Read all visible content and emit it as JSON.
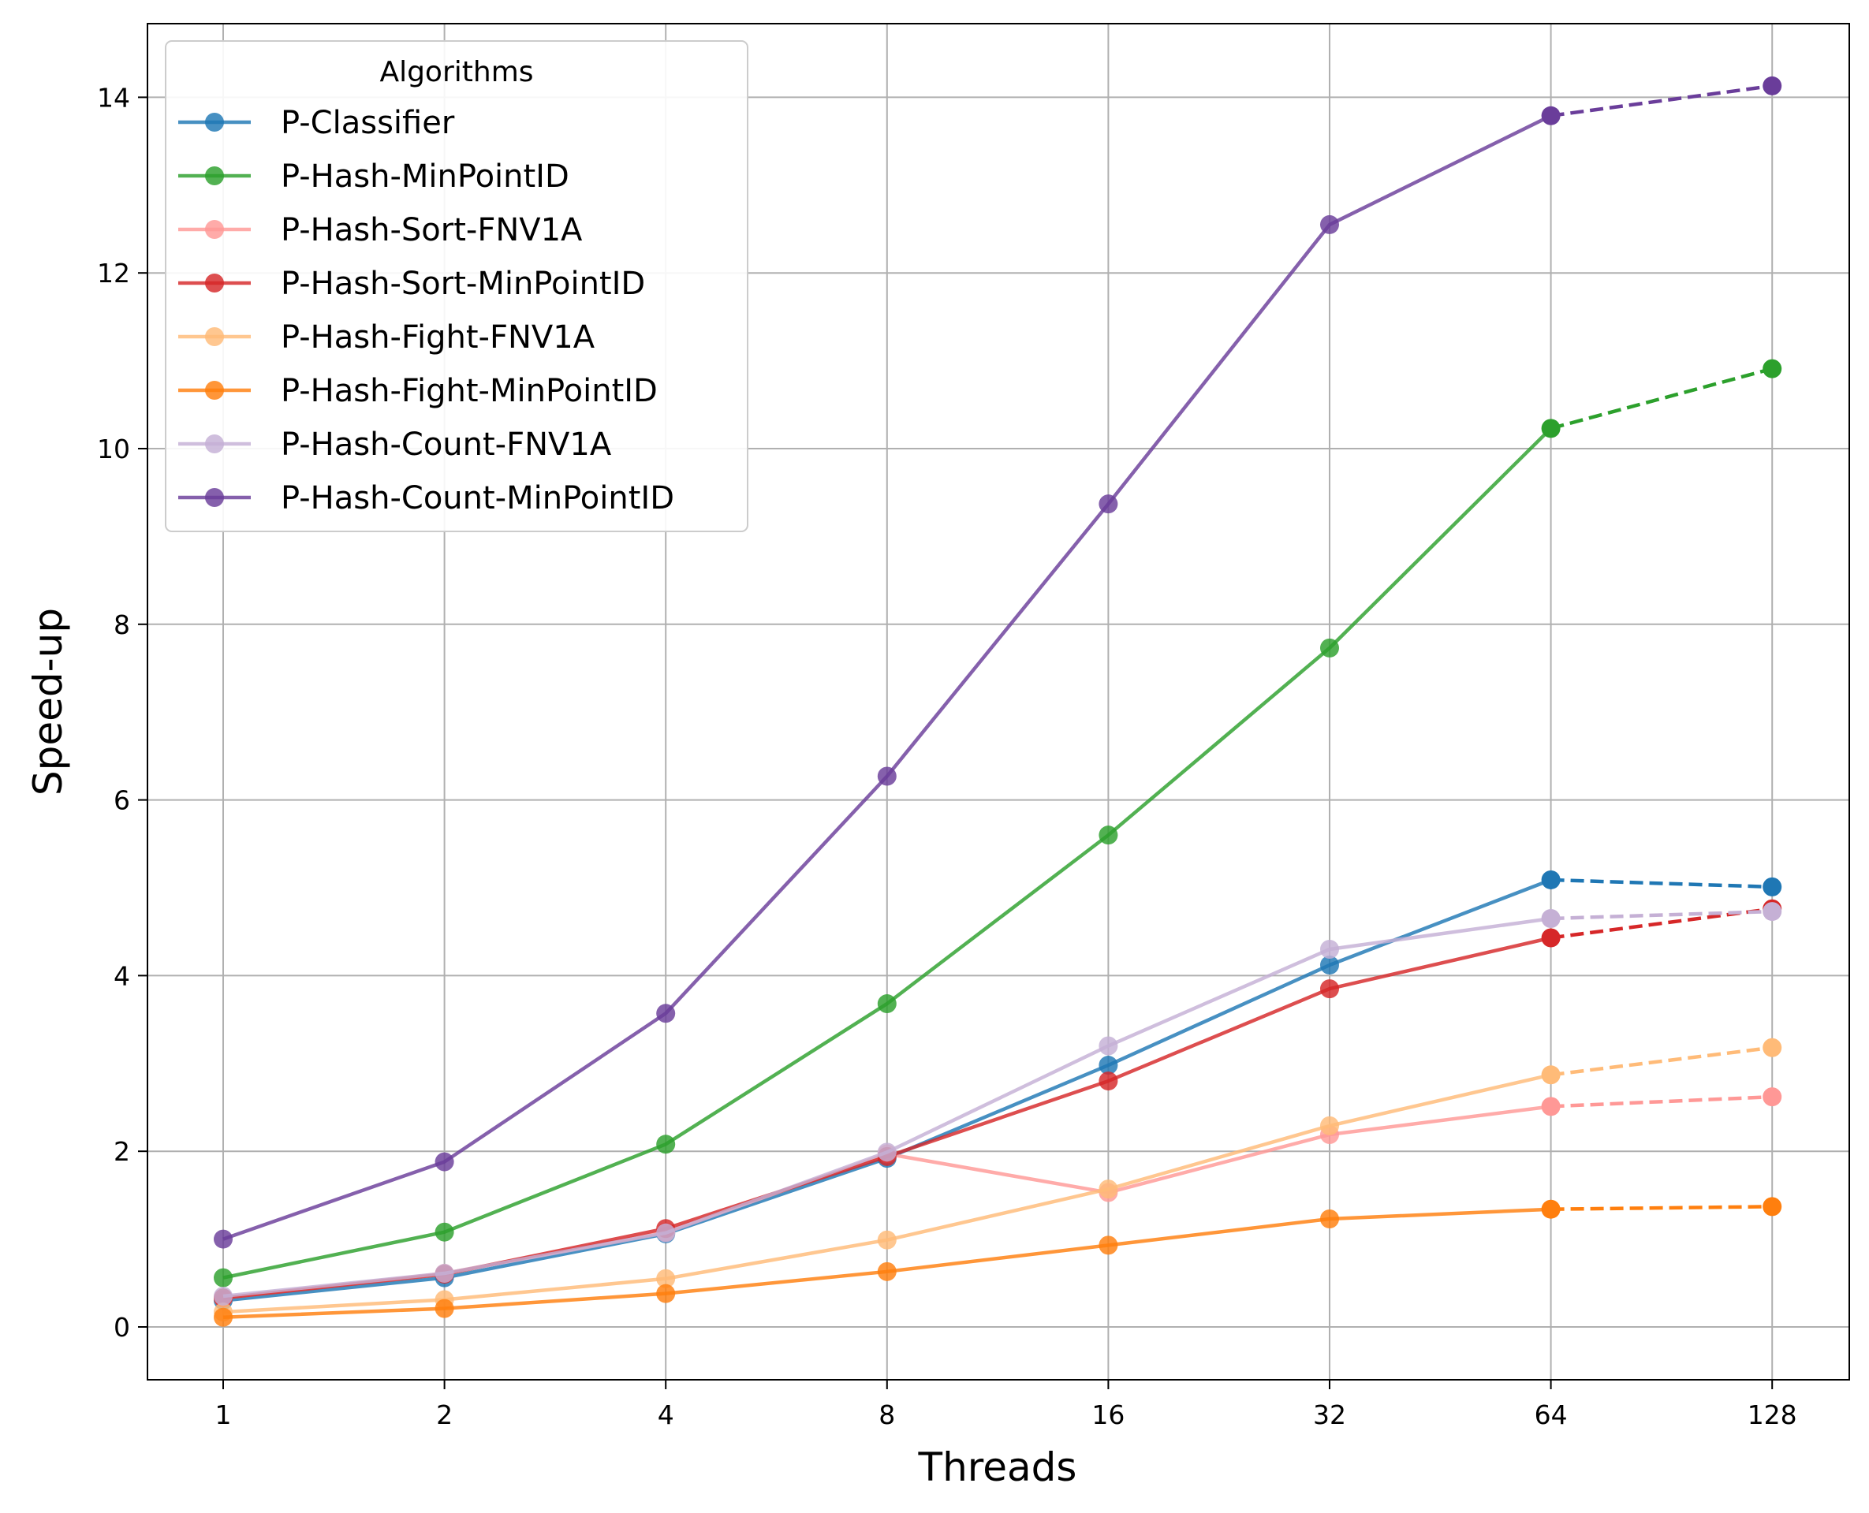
{
  "chart_data": {
    "type": "line",
    "title": "",
    "xlabel": "Threads",
    "ylabel": "Speed-up",
    "x_scale": "log2",
    "x": [
      1,
      2,
      4,
      8,
      16,
      32,
      64,
      128
    ],
    "x_tick_labels": [
      "1",
      "2",
      "4",
      "8",
      "16",
      "32",
      "64",
      "128"
    ],
    "ylim": [
      -0.6,
      14.8
    ],
    "y_ticks": [
      0,
      2,
      4,
      6,
      8,
      10,
      12,
      14
    ],
    "y_tick_labels": [
      "0",
      "2",
      "4",
      "6",
      "8",
      "10",
      "12",
      "14"
    ],
    "grid": true,
    "dashed_last_segment": true,
    "legend": {
      "title": "Algorithms",
      "position": "top-left"
    },
    "series": [
      {
        "name": "P-Classifier",
        "color": "#1f77b4",
        "values": [
          0.3,
          0.56,
          1.06,
          1.92,
          2.98,
          4.12,
          5.09,
          5.01
        ]
      },
      {
        "name": "P-Hash-MinPointID",
        "color": "#2ca02c",
        "values": [
          0.56,
          1.08,
          2.08,
          3.68,
          5.6,
          7.73,
          10.23,
          10.91
        ]
      },
      {
        "name": "P-Hash-Sort-FNV1A",
        "color": "#ff9896",
        "values": [
          0.33,
          0.61,
          1.08,
          1.97,
          1.53,
          2.19,
          2.51,
          2.62
        ]
      },
      {
        "name": "P-Hash-Sort-MinPointID",
        "color": "#d62728",
        "values": [
          0.33,
          0.6,
          1.12,
          1.94,
          2.8,
          3.85,
          4.43,
          4.76
        ]
      },
      {
        "name": "P-Hash-Fight-FNV1A",
        "color": "#ffbb78",
        "values": [
          0.17,
          0.31,
          0.55,
          0.99,
          1.57,
          2.29,
          2.87,
          3.18
        ]
      },
      {
        "name": "P-Hash-Fight-MinPointID",
        "color": "#ff7f0e",
        "values": [
          0.11,
          0.21,
          0.38,
          0.63,
          0.93,
          1.23,
          1.34,
          1.37
        ]
      },
      {
        "name": "P-Hash-Count-FNV1A",
        "color": "#c5b0d5",
        "values": [
          0.35,
          0.61,
          1.07,
          1.99,
          3.2,
          4.3,
          4.65,
          4.73
        ]
      },
      {
        "name": "P-Hash-Count-MinPointID",
        "color": "#6a3d9a",
        "values": [
          1.0,
          1.88,
          3.57,
          6.27,
          9.37,
          12.55,
          13.79,
          14.13
        ]
      }
    ]
  }
}
